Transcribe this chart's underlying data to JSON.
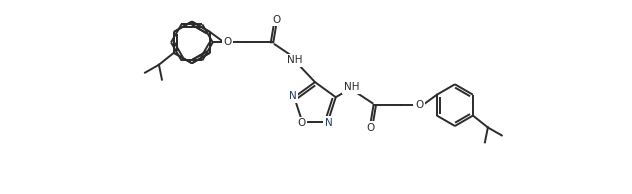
{
  "bg_color": "#ffffff",
  "line_color": "#2b2b2b",
  "lw": 1.4,
  "figsize": [
    6.32,
    1.94
  ],
  "dpi": 100,
  "xlim": [
    0,
    63.2
  ],
  "ylim": [
    0,
    19.4
  ]
}
